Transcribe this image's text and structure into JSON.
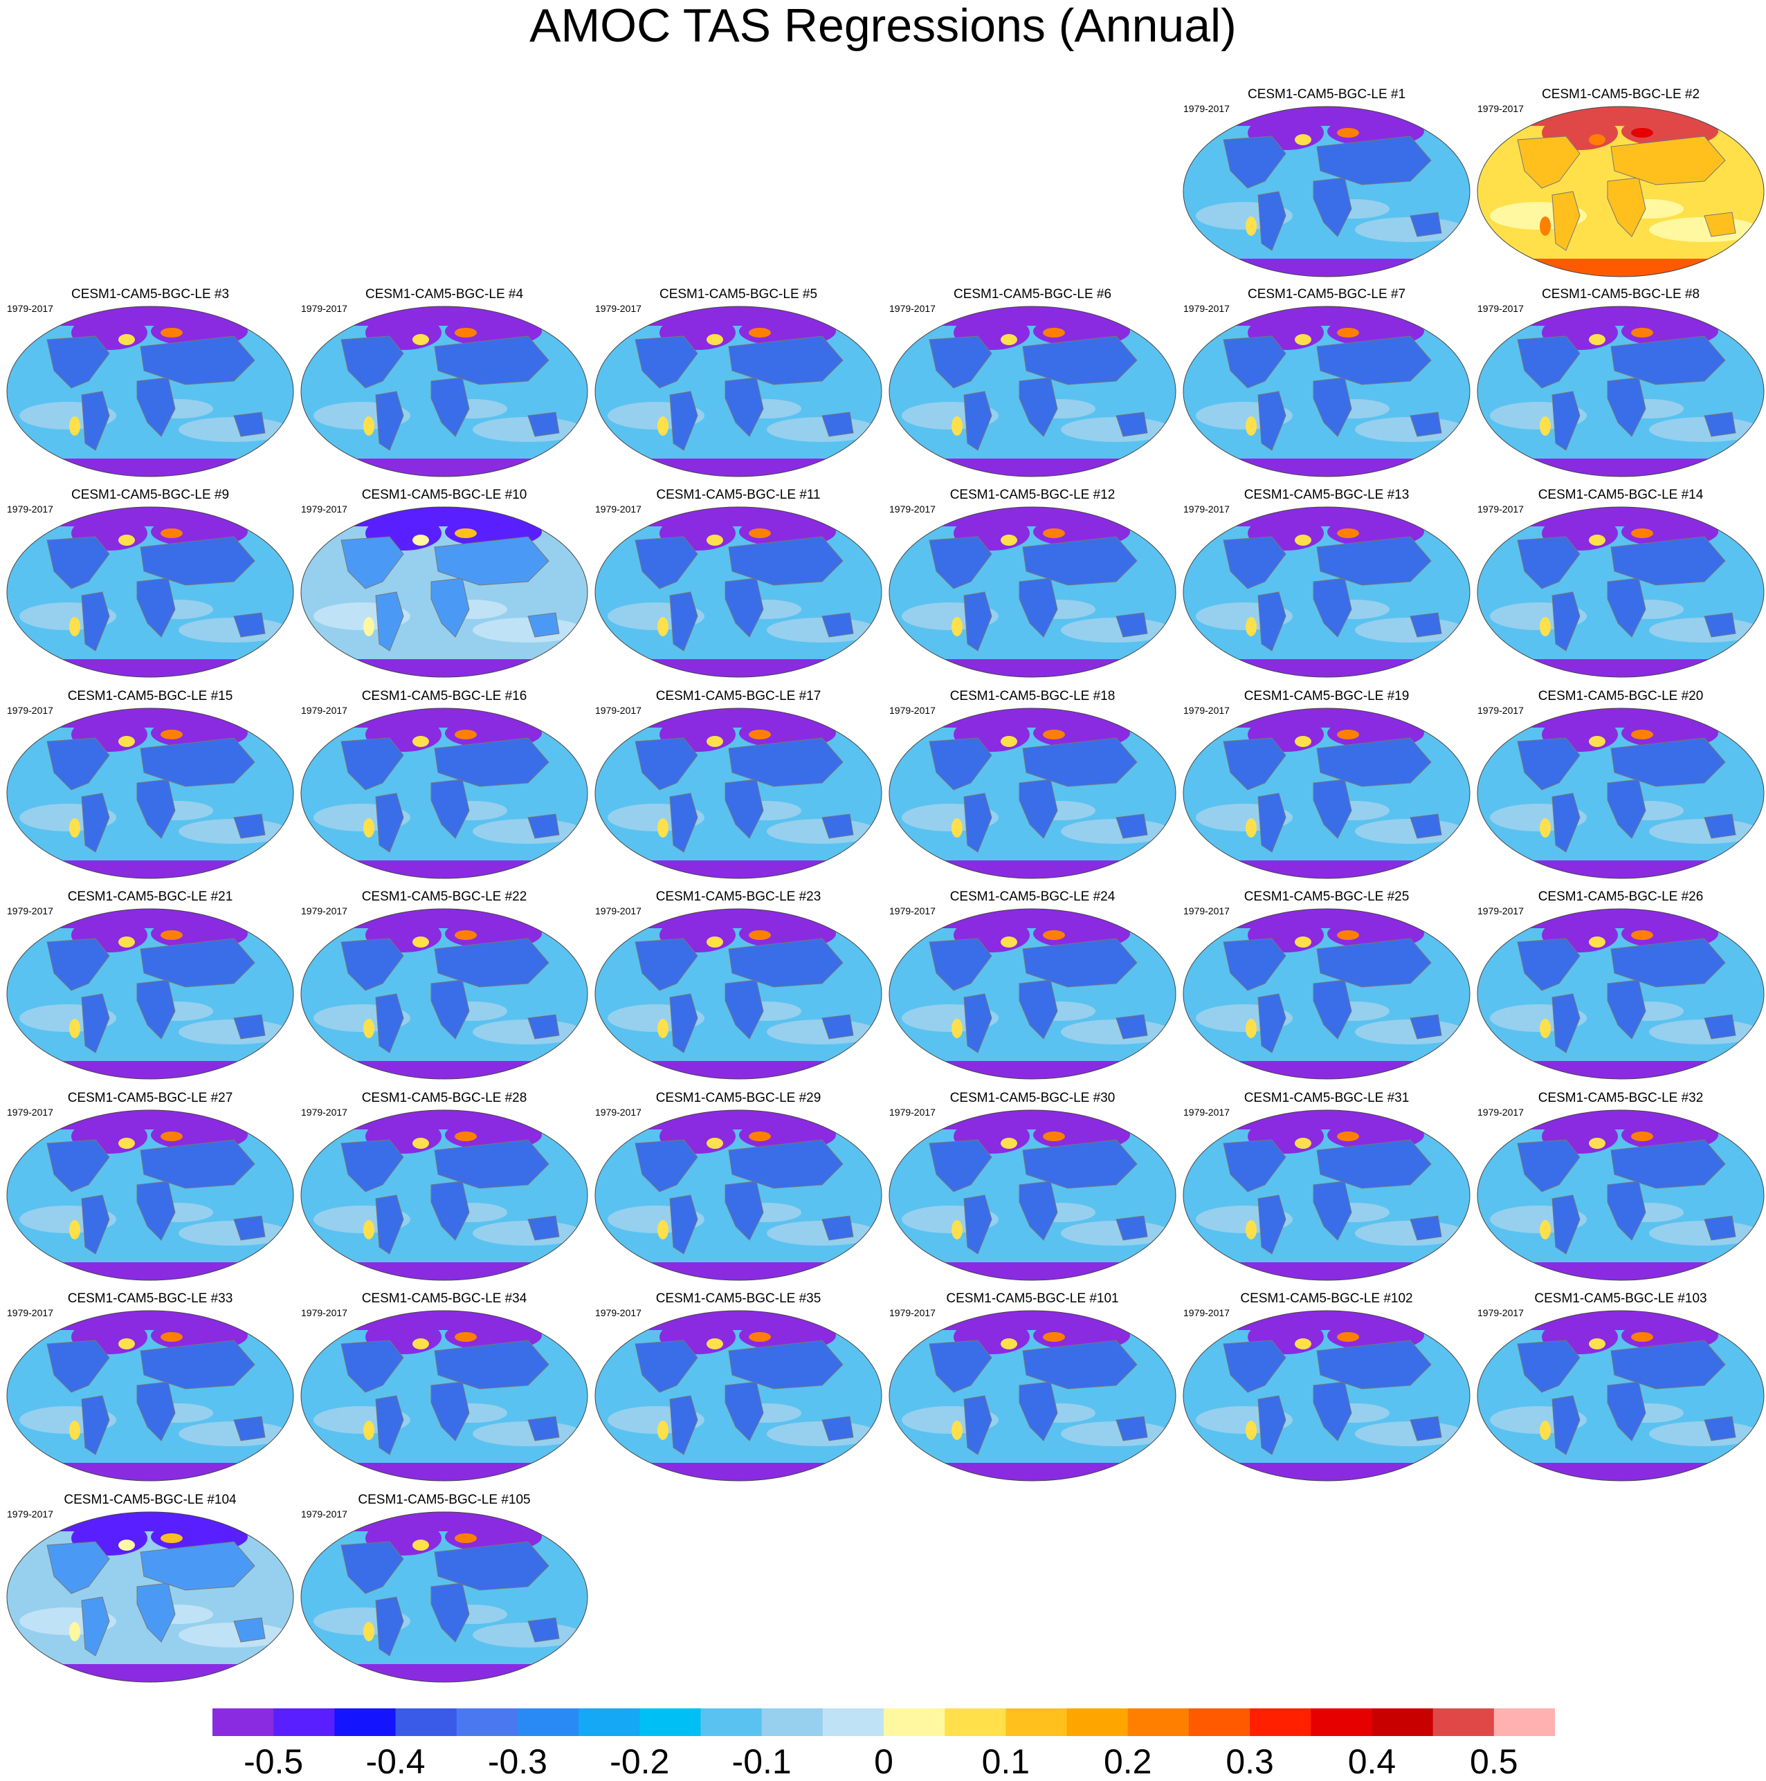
{
  "title": "AMOC TAS Regressions (Annual)",
  "period": "1979-2017",
  "panels": [
    {
      "label": "CESM1-CAM5-BGC-LE #1",
      "style": "cold"
    },
    {
      "label": "CESM1-CAM5-BGC-LE #2",
      "style": "warm"
    },
    {
      "label": "CESM1-CAM5-BGC-LE #3",
      "style": "cold"
    },
    {
      "label": "CESM1-CAM5-BGC-LE #4",
      "style": "cold"
    },
    {
      "label": "CESM1-CAM5-BGC-LE #5",
      "style": "cold"
    },
    {
      "label": "CESM1-CAM5-BGC-LE #6",
      "style": "cold"
    },
    {
      "label": "CESM1-CAM5-BGC-LE #7",
      "style": "cold"
    },
    {
      "label": "CESM1-CAM5-BGC-LE #8",
      "style": "cold"
    },
    {
      "label": "CESM1-CAM5-BGC-LE #9",
      "style": "cold"
    },
    {
      "label": "CESM1-CAM5-BGC-LE #10",
      "style": "mild"
    },
    {
      "label": "CESM1-CAM5-BGC-LE #11",
      "style": "cold"
    },
    {
      "label": "CESM1-CAM5-BGC-LE #12",
      "style": "cold"
    },
    {
      "label": "CESM1-CAM5-BGC-LE #13",
      "style": "cold"
    },
    {
      "label": "CESM1-CAM5-BGC-LE #14",
      "style": "cold"
    },
    {
      "label": "CESM1-CAM5-BGC-LE #15",
      "style": "cold"
    },
    {
      "label": "CESM1-CAM5-BGC-LE #16",
      "style": "cold"
    },
    {
      "label": "CESM1-CAM5-BGC-LE #17",
      "style": "cold"
    },
    {
      "label": "CESM1-CAM5-BGC-LE #18",
      "style": "cold"
    },
    {
      "label": "CESM1-CAM5-BGC-LE #19",
      "style": "cold"
    },
    {
      "label": "CESM1-CAM5-BGC-LE #20",
      "style": "cold"
    },
    {
      "label": "CESM1-CAM5-BGC-LE #21",
      "style": "cold"
    },
    {
      "label": "CESM1-CAM5-BGC-LE #22",
      "style": "cold"
    },
    {
      "label": "CESM1-CAM5-BGC-LE #23",
      "style": "cold"
    },
    {
      "label": "CESM1-CAM5-BGC-LE #24",
      "style": "cold"
    },
    {
      "label": "CESM1-CAM5-BGC-LE #25",
      "style": "cold"
    },
    {
      "label": "CESM1-CAM5-BGC-LE #26",
      "style": "cold"
    },
    {
      "label": "CESM1-CAM5-BGC-LE #27",
      "style": "cold"
    },
    {
      "label": "CESM1-CAM5-BGC-LE #28",
      "style": "cold"
    },
    {
      "label": "CESM1-CAM5-BGC-LE #29",
      "style": "cold"
    },
    {
      "label": "CESM1-CAM5-BGC-LE #30",
      "style": "cold"
    },
    {
      "label": "CESM1-CAM5-BGC-LE #31",
      "style": "cold"
    },
    {
      "label": "CESM1-CAM5-BGC-LE #32",
      "style": "cold"
    },
    {
      "label": "CESM1-CAM5-BGC-LE #33",
      "style": "cold"
    },
    {
      "label": "CESM1-CAM5-BGC-LE #34",
      "style": "cold"
    },
    {
      "label": "CESM1-CAM5-BGC-LE #35",
      "style": "cold"
    },
    {
      "label": "CESM1-CAM5-BGC-LE #101",
      "style": "cold"
    },
    {
      "label": "CESM1-CAM5-BGC-LE #102",
      "style": "cold"
    },
    {
      "label": "CESM1-CAM5-BGC-LE #103",
      "style": "cold"
    },
    {
      "label": "CESM1-CAM5-BGC-LE #104",
      "style": "mild"
    },
    {
      "label": "CESM1-CAM5-BGC-LE #105",
      "style": "cold"
    }
  ],
  "colorbar": {
    "colors": [
      "#8a2be2",
      "#5a1fff",
      "#1414ff",
      "#3a5ae8",
      "#4a78f0",
      "#2a8af5",
      "#14a8f5",
      "#00bff5",
      "#5ac2f0",
      "#96d0ee",
      "#bfe2f6",
      "#fff8a0",
      "#ffe04a",
      "#ffc01e",
      "#ffa500",
      "#ff8000",
      "#ff5a00",
      "#ff2000",
      "#e60000",
      "#c80000",
      "#e04848",
      "#ffb0b0"
    ],
    "tick_labels": [
      "-0.5",
      "-0.4",
      "-0.3",
      "-0.2",
      "-0.1",
      "0",
      "0.1",
      "0.2",
      "0.3",
      "0.4",
      "0.5"
    ]
  }
}
